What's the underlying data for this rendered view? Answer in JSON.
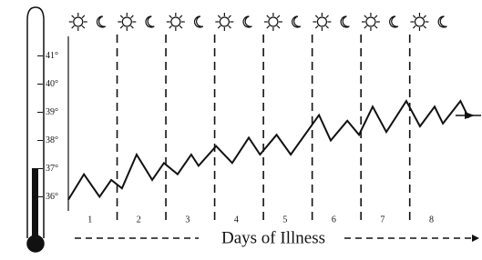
{
  "chart_data": {
    "type": "line",
    "x_label": "Days of Illness",
    "x": [
      0,
      0.32,
      0.64,
      0.88,
      1.1,
      1.4,
      1.72,
      1.96,
      2.24,
      2.52,
      2.67,
      3.03,
      3.36,
      3.7,
      3.93,
      4.27,
      4.56,
      5.14,
      5.38,
      5.72,
      5.96,
      6.24,
      6.52,
      6.93,
      7.21,
      7.51,
      7.68,
      8.04,
      8.21
    ],
    "values": [
      35.9,
      36.8,
      36.0,
      36.6,
      36.3,
      37.5,
      36.6,
      37.2,
      36.8,
      37.5,
      37.1,
      37.8,
      37.2,
      38.1,
      37.5,
      38.2,
      37.5,
      38.9,
      38.0,
      38.7,
      38.2,
      39.2,
      38.3,
      39.4,
      38.5,
      39.2,
      38.6,
      39.4,
      38.8
    ],
    "color": "#111111",
    "xlim": [
      0,
      8.22
    ],
    "xticks": [
      {
        "value": 0.5,
        "label": "1"
      },
      {
        "value": 1.5,
        "label": "2"
      },
      {
        "value": 2.5,
        "label": "3"
      },
      {
        "value": 3.5,
        "label": "4"
      },
      {
        "value": 4.5,
        "label": "5"
      },
      {
        "value": 5.5,
        "label": "6"
      },
      {
        "value": 6.5,
        "label": "7"
      },
      {
        "value": 7.5,
        "label": "8"
      }
    ],
    "ylim": [
      35.5,
      41.5
    ],
    "yticks": [
      {
        "value": 36,
        "label": "36°"
      },
      {
        "value": 37,
        "label": "37°"
      },
      {
        "value": 38,
        "label": "38°"
      },
      {
        "value": 39,
        "label": "39°"
      },
      {
        "value": 40,
        "label": "40°"
      },
      {
        "value": 41,
        "label": "41°"
      }
    ]
  }
}
